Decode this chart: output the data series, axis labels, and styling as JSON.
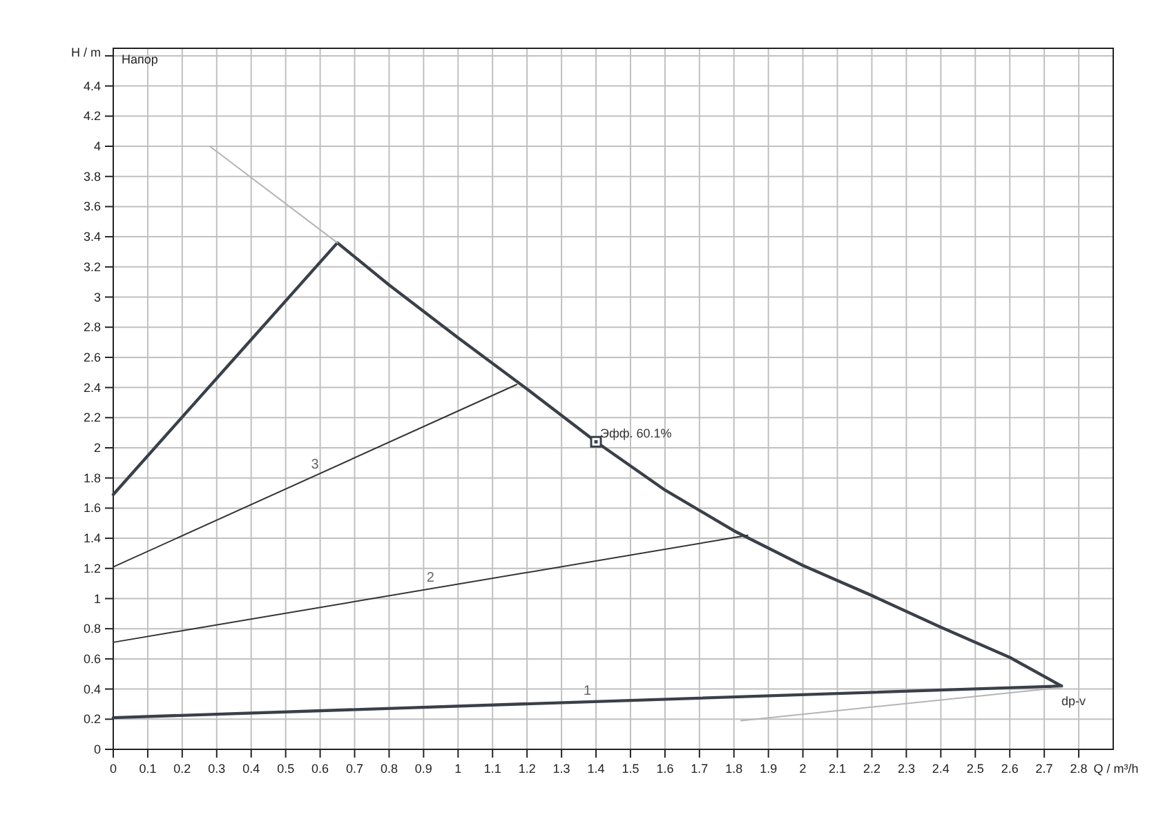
{
  "chart_data": {
    "type": "line",
    "title": "Напор",
    "xlabel": "Q / m³/h",
    "ylabel": "H / m",
    "xlim": [
      0,
      2.9
    ],
    "ylim": [
      0,
      4.65
    ],
    "xticks": [
      0,
      0.1,
      0.2,
      0.3,
      0.4,
      0.5,
      0.6,
      0.7,
      0.8,
      0.9,
      1,
      1.1,
      1.2,
      1.3,
      1.4,
      1.5,
      1.6,
      1.7,
      1.8,
      1.9,
      2,
      2.1,
      2.2,
      2.3,
      2.4,
      2.5,
      2.6,
      2.7,
      2.8
    ],
    "yticks": [
      0,
      0.2,
      0.4,
      0.6,
      0.8,
      1,
      1.2,
      1.4,
      1.6,
      1.8,
      2,
      2.2,
      2.4,
      2.6,
      2.8,
      3,
      3.2,
      3.4,
      3.6,
      3.8,
      4,
      4.2,
      4.4,
      {
        "value": 4.6,
        "label": null
      }
    ],
    "grid": true,
    "series": [
      {
        "color": "#3a4049",
        "x": [
          0,
          0.65,
          0.8,
          1.0,
          1.2,
          1.4,
          1.6,
          1.8,
          2.0,
          2.2,
          2.4,
          2.6,
          2.75
        ],
        "values": [
          1.69,
          3.36,
          3.08,
          2.73,
          2.39,
          2.04,
          1.72,
          1.45,
          1.22,
          1.02,
          0.81,
          0.61,
          0.42
        ]
      },
      {
        "name": "1",
        "color": "#3a4049",
        "x": [
          0,
          2.75
        ],
        "values": [
          0.21,
          0.42
        ]
      },
      {
        "name": "2",
        "color": "#333333",
        "x": [
          0,
          1.84
        ],
        "values": [
          0.71,
          1.42
        ]
      },
      {
        "name": "3",
        "color": "#333333",
        "x": [
          0,
          1.17
        ],
        "values": [
          1.21,
          2.42
        ]
      },
      {
        "color": "#b4b4b4",
        "x": [
          0.28,
          0.65
        ],
        "values": [
          4.0,
          3.36
        ]
      },
      {
        "color": "#b4b4b4",
        "x": [
          1.82,
          2.75
        ],
        "values": [
          0.19,
          0.41
        ]
      },
      {
        "type": "scatter",
        "marker": "square",
        "color": "#3a4049",
        "x": [
          1.4
        ],
        "values": [
          2.04
        ]
      }
    ],
    "annotations": [
      {
        "text": "Эфф. 60.1%",
        "x": 1.4,
        "y": 2.04
      },
      {
        "text": "dp-v",
        "x": 2.75,
        "y": 0.42
      }
    ]
  }
}
